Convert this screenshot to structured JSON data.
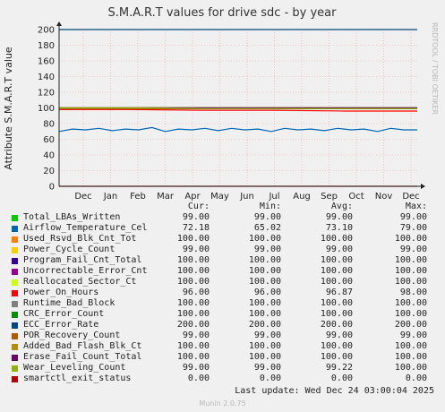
{
  "chart_data": {
    "type": "line",
    "title": "S.M.A.R.T values for drive sdc - by year",
    "ylabel": "Attribute S.M.A.R.T value",
    "ylim": [
      0,
      200
    ],
    "y_ticks": [
      "0",
      "20",
      "40",
      "60",
      "80",
      "100",
      "120",
      "140",
      "160",
      "180",
      "200"
    ],
    "x_ticks": [
      "Dec",
      "Jan",
      "Feb",
      "Mar",
      "Apr",
      "May",
      "Jun",
      "Jul",
      "Aug",
      "Sep",
      "Oct",
      "Nov",
      "Dec"
    ],
    "grid": true,
    "series": [
      {
        "name": "Total_LBAs_Written",
        "color": "#00cc00",
        "cur": "99.00",
        "min": "99.00",
        "avg": "99.00",
        "max": "99.00",
        "values": [
          99,
          99
        ]
      },
      {
        "name": "Airflow_Temperature_Cel",
        "color": "#0066b3",
        "cur": "72.18",
        "min": "65.02",
        "avg": "73.10",
        "max": "79.00",
        "values": [
          70,
          73,
          72,
          74,
          71,
          73,
          72,
          75,
          70,
          73,
          72,
          74,
          71,
          74,
          72,
          73,
          70,
          74,
          72,
          73,
          71,
          74,
          72,
          73,
          70,
          74,
          72,
          72
        ]
      },
      {
        "name": "Used_Rsvd_Blk_Cnt_Tot",
        "color": "#ff8000",
        "cur": "100.00",
        "min": "100.00",
        "avg": "100.00",
        "max": "100.00",
        "values": [
          100,
          100
        ]
      },
      {
        "name": "Power_Cycle_Count",
        "color": "#ffcc00",
        "cur": "99.00",
        "min": "99.00",
        "avg": "99.00",
        "max": "99.00",
        "values": [
          99,
          99
        ]
      },
      {
        "name": "Program_Fail_Cnt_Total",
        "color": "#330099",
        "cur": "100.00",
        "min": "100.00",
        "avg": "100.00",
        "max": "100.00",
        "values": [
          100,
          100
        ]
      },
      {
        "name": "Uncorrectable_Error_Cnt",
        "color": "#990099",
        "cur": "100.00",
        "min": "100.00",
        "avg": "100.00",
        "max": "100.00",
        "values": [
          100,
          100
        ]
      },
      {
        "name": "Reallocated_Sector_Ct",
        "color": "#ccff00",
        "cur": "100.00",
        "min": "100.00",
        "avg": "100.00",
        "max": "100.00",
        "values": [
          100,
          100
        ]
      },
      {
        "name": "Power_On_Hours",
        "color": "#ff0000",
        "cur": "96.00",
        "min": "96.00",
        "avg": "96.87",
        "max": "98.00",
        "values": [
          98,
          98,
          97,
          97,
          96,
          96
        ]
      },
      {
        "name": "Runtime_Bad_Block",
        "color": "#808080",
        "cur": "100.00",
        "min": "100.00",
        "avg": "100.00",
        "max": "100.00",
        "values": [
          100,
          100
        ]
      },
      {
        "name": "CRC_Error_Count",
        "color": "#008f00",
        "cur": "100.00",
        "min": "100.00",
        "avg": "100.00",
        "max": "100.00",
        "values": [
          100,
          100
        ]
      },
      {
        "name": "ECC_Error_Rate",
        "color": "#00487d",
        "cur": "200.00",
        "min": "200.00",
        "avg": "200.00",
        "max": "200.00",
        "values": [
          200,
          200
        ]
      },
      {
        "name": "POR_Recovery_Count",
        "color": "#b35a00",
        "cur": "99.00",
        "min": "99.00",
        "avg": "99.00",
        "max": "99.00",
        "values": [
          99,
          99
        ]
      },
      {
        "name": "Added_Bad_Flash_Blk_Ct",
        "color": "#b38f00",
        "cur": "100.00",
        "min": "100.00",
        "avg": "100.00",
        "max": "100.00",
        "values": [
          100,
          100
        ]
      },
      {
        "name": "Erase_Fail_Count_Total",
        "color": "#6b006b",
        "cur": "100.00",
        "min": "100.00",
        "avg": "100.00",
        "max": "100.00",
        "values": [
          100,
          100
        ]
      },
      {
        "name": "Wear_Leveling_Count",
        "color": "#8fb300",
        "cur": "99.00",
        "min": "99.00",
        "avg": "99.22",
        "max": "100.00",
        "values": [
          100,
          100,
          99,
          99,
          99,
          99
        ]
      },
      {
        "name": "smartctl_exit_status",
        "color": "#b30000",
        "cur": "0.00",
        "min": "0.00",
        "avg": "0.00",
        "max": "0.00",
        "values": [
          0,
          0
        ]
      }
    ]
  },
  "legend_headers": {
    "cur": "Cur:",
    "min": "Min:",
    "avg": "Avg:",
    "max": "Max:"
  },
  "last_update": "Last update: Wed Dec 24 03:00:04 2025",
  "side_label": "RRDTOOL / TOBI OETIKER",
  "footer": "Munin 2.0.75"
}
